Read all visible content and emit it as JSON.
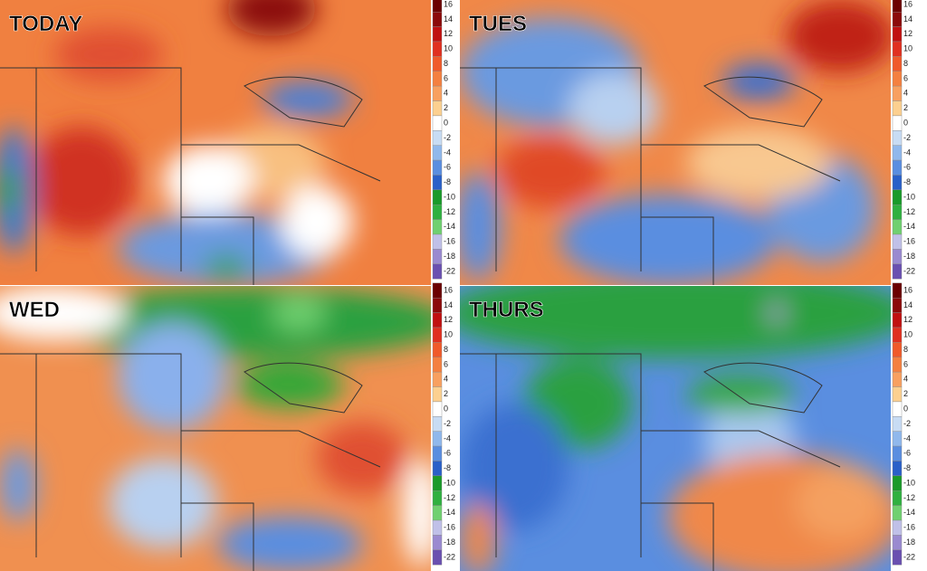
{
  "panels": [
    {
      "title": "TODAY"
    },
    {
      "title": "TUES"
    },
    {
      "title": "WED"
    },
    {
      "title": "THURS"
    }
  ],
  "colorbar": {
    "ticks": [
      16,
      14,
      12,
      10,
      8,
      6,
      4,
      2,
      0,
      -2,
      -4,
      -6,
      -8,
      -10,
      -12,
      -14,
      -16,
      -18,
      -22
    ],
    "colors": [
      "#6b0000",
      "#8b0a0a",
      "#c01010",
      "#e03020",
      "#f05a2a",
      "#f48040",
      "#f8a060",
      "#fcd090",
      "#ffffff",
      "#c8dcf4",
      "#90b8ec",
      "#5a8ee0",
      "#2a60c8",
      "#1a9a2a",
      "#30b040",
      "#70d070",
      "#c0c0e8",
      "#9a8ad0",
      "#6a50b0"
    ]
  }
}
